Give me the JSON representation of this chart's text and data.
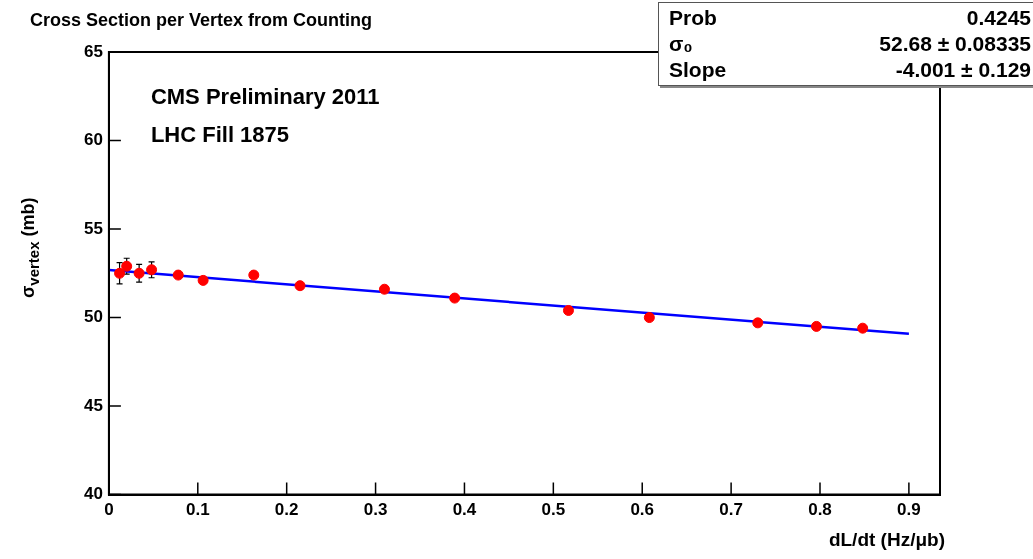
{
  "chart_data": {
    "type": "scatter",
    "title": "Cross Section per Vertex from Counting",
    "xlabel": "dL/dt  (Hz/μb)",
    "ylabel": "σ$_{vertex}$  (mb)",
    "x": [
      0.012,
      0.02,
      0.034,
      0.048,
      0.078,
      0.106,
      0.163,
      0.215,
      0.31,
      0.389,
      0.517,
      0.608,
      0.73,
      0.796,
      0.848
    ],
    "series": [
      {
        "type": "scatter",
        "color": "#ff0000",
        "marker": "circle",
        "values": [
          52.5,
          52.9,
          52.5,
          52.7,
          52.4,
          52.1,
          52.4,
          51.8,
          51.6,
          51.1,
          50.4,
          50.0,
          49.7,
          49.5,
          49.4
        ],
        "errors": [
          0.6,
          0.45,
          0.5,
          0.45,
          null,
          null,
          null,
          null,
          null,
          null,
          null,
          null,
          null,
          null,
          null
        ]
      },
      {
        "type": "line",
        "color": "#0000ff",
        "marker": "none",
        "line_style": "solid",
        "x": [
          0,
          0.9
        ],
        "values": [
          52.68,
          49.08
        ]
      }
    ],
    "xlim": [
      0,
      0.935
    ],
    "xticks": [
      0,
      0.1,
      0.2,
      0.3,
      0.4,
      0.5,
      0.6,
      0.7,
      0.8,
      0.9
    ],
    "ylim": [
      40,
      65
    ],
    "yticks": [
      40,
      45,
      50,
      55,
      60,
      65
    ],
    "grid": false,
    "legend": false,
    "annotations": [
      "CMS Preliminary 2011",
      "LHC Fill 1875",
      "Prob 0.4245",
      "σ₀ 52.68 ± 0.08335",
      "Slope -4.001 ± 0.129"
    ]
  }
}
